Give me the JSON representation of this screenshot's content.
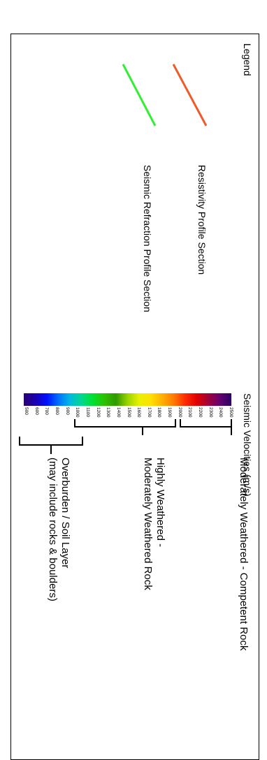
{
  "legend": {
    "title": "Legend",
    "items": [
      {
        "label": "Resistivity Profile Section",
        "color": "#f05a28"
      },
      {
        "label": "Seismic Refraction Profile Section",
        "color": "#33ee33"
      }
    ]
  },
  "scale": {
    "title": "Seismic Velocities (m/s)",
    "unit": "m/s",
    "min": 500,
    "max": 2500,
    "ticks": [
      "2500",
      "2400",
      "2300",
      "2200",
      "2100",
      "2000",
      "1900",
      "1800",
      "1700",
      "1600",
      "1500",
      "1400",
      "1300",
      "1200",
      "1100",
      "1000",
      "900",
      "800",
      "700",
      "600",
      "500"
    ],
    "gradient_colors": [
      "#2a0066",
      "#66006e",
      "#a0003a",
      "#e00000",
      "#ff2a00",
      "#ff7a00",
      "#ffb000",
      "#ffe000",
      "#e8f000",
      "#9ad400",
      "#2e9a00",
      "#2ec000",
      "#00e030",
      "#00d890",
      "#00b8e0",
      "#0070ff",
      "#0010ff",
      "#1a00b0",
      "#2a0070"
    ]
  },
  "classes": [
    {
      "label_lines": [
        "Moderately Weathered - Competent Rock"
      ]
    },
    {
      "label_lines": [
        "Highly Weathered -",
        "Moderately Weathered Rock"
      ]
    },
    {
      "label_lines": [
        "Overburden / Soil Layer",
        "(may include rocks & boulders)"
      ]
    }
  ]
}
